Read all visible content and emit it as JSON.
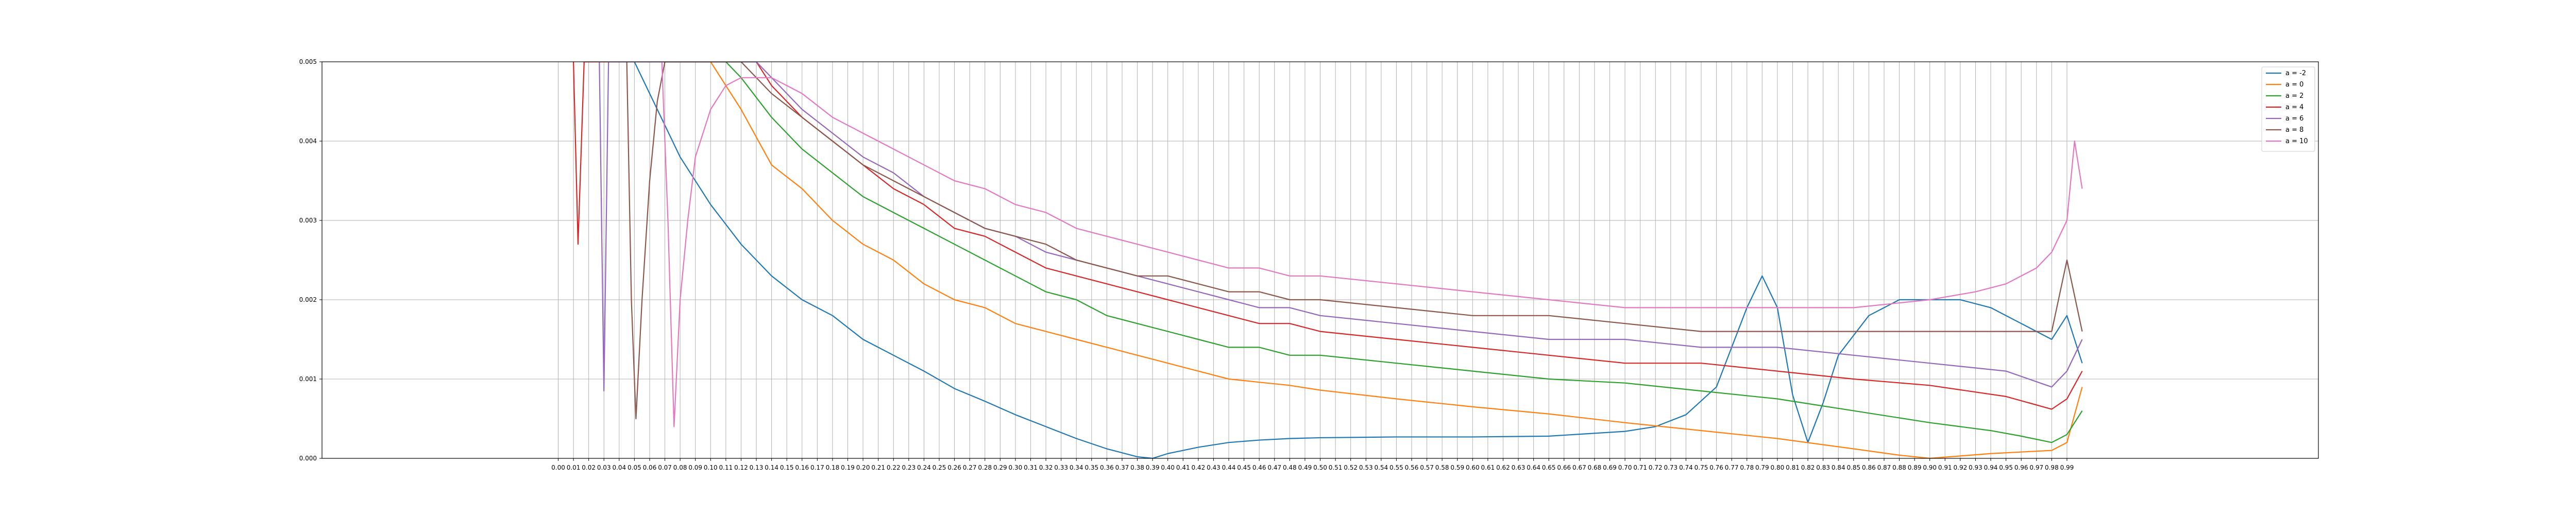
{
  "chart_data": {
    "type": "line",
    "title": "",
    "xlabel": "",
    "ylabel": "",
    "xlim": [
      -0.155,
      1.155
    ],
    "ylim": [
      0,
      0.005
    ],
    "grid": true,
    "legend_position": "top-right",
    "y_ticks": [
      "0.000",
      "0.001",
      "0.002",
      "0.003",
      "0.004",
      "0.005"
    ],
    "x_ticks": [
      "0.00",
      "0.01",
      "0.02",
      "0.03",
      "0.04",
      "0.05",
      "0.06",
      "0.07",
      "0.08",
      "0.09",
      "0.10",
      "0.11",
      "0.12",
      "0.13",
      "0.14",
      "0.15",
      "0.16",
      "0.17",
      "0.18",
      "0.19",
      "0.20",
      "0.21",
      "0.22",
      "0.23",
      "0.24",
      "0.25",
      "0.26",
      "0.27",
      "0.28",
      "0.29",
      "0.30",
      "0.31",
      "0.32",
      "0.33",
      "0.34",
      "0.35",
      "0.36",
      "0.37",
      "0.38",
      "0.39",
      "0.40",
      "0.41",
      "0.42",
      "0.43",
      "0.44",
      "0.45",
      "0.46",
      "0.47",
      "0.48",
      "0.49",
      "0.50",
      "0.51",
      "0.52",
      "0.53",
      "0.54",
      "0.55",
      "0.56",
      "0.57",
      "0.58",
      "0.59",
      "0.60",
      "0.61",
      "0.62",
      "0.63",
      "0.64",
      "0.65",
      "0.66",
      "0.67",
      "0.68",
      "0.69",
      "0.70",
      "0.71",
      "0.72",
      "0.73",
      "0.74",
      "0.75",
      "0.76",
      "0.77",
      "0.78",
      "0.79",
      "0.80",
      "0.81",
      "0.82",
      "0.83",
      "0.84",
      "0.85",
      "0.86",
      "0.87",
      "0.88",
      "0.89",
      "0.90",
      "0.91",
      "0.92",
      "0.93",
      "0.94",
      "0.95",
      "0.96",
      "0.97",
      "0.98",
      "0.99"
    ],
    "series": [
      {
        "name": "a = -2",
        "color": "#1f77b4",
        "x": [
          0.05,
          0.06,
          0.08,
          0.1,
          0.12,
          0.14,
          0.16,
          0.18,
          0.2,
          0.22,
          0.24,
          0.26,
          0.28,
          0.3,
          0.32,
          0.34,
          0.36,
          0.38,
          0.39,
          0.4,
          0.42,
          0.44,
          0.46,
          0.48,
          0.5,
          0.55,
          0.6,
          0.65,
          0.7,
          0.72,
          0.74,
          0.76,
          0.77,
          0.78,
          0.79,
          0.8,
          0.81,
          0.82,
          0.83,
          0.84,
          0.86,
          0.88,
          0.9,
          0.92,
          0.94,
          0.96,
          0.97,
          0.98,
          0.99,
          1.0
        ],
        "y": [
          0.005,
          0.0046,
          0.0038,
          0.0032,
          0.0027,
          0.0023,
          0.002,
          0.0018,
          0.0015,
          0.0013,
          0.0011,
          0.00088,
          0.00072,
          0.00055,
          0.0004,
          0.00025,
          0.00012,
          2e-05,
          0.0,
          6e-05,
          0.00014,
          0.0002,
          0.00023,
          0.00025,
          0.00026,
          0.00027,
          0.00027,
          0.00028,
          0.00034,
          0.0004,
          0.00055,
          0.0009,
          0.0014,
          0.0019,
          0.0023,
          0.0019,
          0.0008,
          0.0002,
          0.0007,
          0.0013,
          0.0018,
          0.002,
          0.002,
          0.002,
          0.0019,
          0.0017,
          0.0016,
          0.0015,
          0.0018,
          0.0012
        ]
      },
      {
        "name": "a = 0",
        "color": "#ff7f0e",
        "x": [
          0.1,
          0.12,
          0.14,
          0.16,
          0.18,
          0.2,
          0.22,
          0.24,
          0.26,
          0.28,
          0.3,
          0.32,
          0.34,
          0.36,
          0.38,
          0.4,
          0.42,
          0.44,
          0.46,
          0.48,
          0.5,
          0.55,
          0.6,
          0.65,
          0.7,
          0.75,
          0.8,
          0.85,
          0.88,
          0.9,
          0.92,
          0.94,
          0.96,
          0.98,
          0.99,
          1.0
        ],
        "y": [
          0.005,
          0.0044,
          0.0037,
          0.0034,
          0.003,
          0.0027,
          0.0025,
          0.0022,
          0.002,
          0.0019,
          0.0017,
          0.0016,
          0.0015,
          0.0014,
          0.0013,
          0.0012,
          0.0011,
          0.001,
          0.00096,
          0.00092,
          0.00086,
          0.00075,
          0.00065,
          0.00056,
          0.00045,
          0.00035,
          0.00025,
          0.00012,
          4e-05,
          0.0,
          3e-05,
          6e-05,
          8e-05,
          0.0001,
          0.0002,
          0.0009
        ]
      },
      {
        "name": "a = 2",
        "color": "#2ca02c",
        "x": [
          0.11,
          0.12,
          0.14,
          0.16,
          0.18,
          0.2,
          0.22,
          0.24,
          0.26,
          0.28,
          0.3,
          0.32,
          0.34,
          0.36,
          0.38,
          0.4,
          0.42,
          0.44,
          0.46,
          0.48,
          0.5,
          0.55,
          0.6,
          0.65,
          0.7,
          0.75,
          0.8,
          0.85,
          0.9,
          0.92,
          0.94,
          0.96,
          0.98,
          0.99,
          1.0
        ],
        "y": [
          0.005,
          0.0048,
          0.0043,
          0.0039,
          0.0036,
          0.0033,
          0.0031,
          0.0029,
          0.0027,
          0.0025,
          0.0023,
          0.0021,
          0.002,
          0.0018,
          0.0017,
          0.0016,
          0.0015,
          0.0014,
          0.0014,
          0.0013,
          0.0013,
          0.0012,
          0.0011,
          0.001,
          0.00095,
          0.00085,
          0.00075,
          0.0006,
          0.00045,
          0.0004,
          0.00035,
          0.00028,
          0.0002,
          0.0003,
          0.0006
        ]
      },
      {
        "name": "a = 4",
        "color": "#d62728",
        "x": [
          0.01,
          0.013,
          0.017,
          0.02,
          0.13,
          0.14,
          0.16,
          0.18,
          0.2,
          0.22,
          0.24,
          0.26,
          0.28,
          0.3,
          0.32,
          0.34,
          0.36,
          0.38,
          0.4,
          0.42,
          0.44,
          0.46,
          0.48,
          0.5,
          0.55,
          0.6,
          0.65,
          0.7,
          0.75,
          0.8,
          0.85,
          0.9,
          0.95,
          0.98,
          0.99,
          1.0
        ],
        "y": [
          0.005,
          0.0027,
          0.005,
          0.005,
          0.005,
          0.0047,
          0.0043,
          0.004,
          0.0037,
          0.0034,
          0.0032,
          0.0029,
          0.0028,
          0.0026,
          0.0024,
          0.0023,
          0.0022,
          0.0021,
          0.002,
          0.0019,
          0.0018,
          0.0017,
          0.0017,
          0.0016,
          0.0015,
          0.0014,
          0.0013,
          0.0012,
          0.0012,
          0.0011,
          0.001,
          0.00092,
          0.00078,
          0.00062,
          0.00075,
          0.0011
        ]
      },
      {
        "name": "a = 6",
        "color": "#9467bd",
        "x": [
          0.027,
          0.03,
          0.033,
          0.13,
          0.14,
          0.16,
          0.18,
          0.2,
          0.22,
          0.24,
          0.26,
          0.28,
          0.3,
          0.32,
          0.34,
          0.36,
          0.38,
          0.4,
          0.42,
          0.44,
          0.46,
          0.48,
          0.5,
          0.55,
          0.6,
          0.65,
          0.7,
          0.75,
          0.8,
          0.85,
          0.9,
          0.95,
          0.98,
          0.99,
          1.0
        ],
        "y": [
          0.005,
          0.00085,
          0.005,
          0.005,
          0.0048,
          0.0044,
          0.0041,
          0.0038,
          0.0036,
          0.0033,
          0.0031,
          0.0029,
          0.0028,
          0.0026,
          0.0025,
          0.0024,
          0.0023,
          0.0022,
          0.0021,
          0.002,
          0.0019,
          0.0019,
          0.0018,
          0.0017,
          0.0016,
          0.0015,
          0.0015,
          0.0014,
          0.0014,
          0.0013,
          0.0012,
          0.0011,
          0.0009,
          0.0011,
          0.0015
        ]
      },
      {
        "name": "a = 8",
        "color": "#8c564b",
        "x": [
          0.045,
          0.048,
          0.051,
          0.055,
          0.06,
          0.065,
          0.07,
          0.12,
          0.14,
          0.16,
          0.18,
          0.2,
          0.22,
          0.24,
          0.26,
          0.28,
          0.3,
          0.32,
          0.34,
          0.36,
          0.38,
          0.4,
          0.42,
          0.44,
          0.46,
          0.48,
          0.5,
          0.55,
          0.6,
          0.65,
          0.7,
          0.75,
          0.8,
          0.85,
          0.9,
          0.95,
          0.98,
          0.99,
          1.0
        ],
        "y": [
          0.005,
          0.002,
          0.0005,
          0.002,
          0.0035,
          0.0045,
          0.005,
          0.005,
          0.0046,
          0.0043,
          0.004,
          0.0037,
          0.0035,
          0.0033,
          0.0031,
          0.0029,
          0.0028,
          0.0027,
          0.0025,
          0.0024,
          0.0023,
          0.0023,
          0.0022,
          0.0021,
          0.0021,
          0.002,
          0.002,
          0.0019,
          0.0018,
          0.0018,
          0.0017,
          0.0016,
          0.0016,
          0.0016,
          0.0016,
          0.0016,
          0.0016,
          0.0025,
          0.0016
        ]
      },
      {
        "name": "a = 10",
        "color": "#e377c2",
        "x": [
          0.068,
          0.072,
          0.076,
          0.08,
          0.085,
          0.09,
          0.1,
          0.11,
          0.12,
          0.13,
          0.14,
          0.16,
          0.18,
          0.2,
          0.22,
          0.24,
          0.26,
          0.28,
          0.3,
          0.32,
          0.34,
          0.36,
          0.38,
          0.4,
          0.42,
          0.44,
          0.46,
          0.48,
          0.5,
          0.55,
          0.6,
          0.65,
          0.7,
          0.75,
          0.8,
          0.85,
          0.9,
          0.93,
          0.95,
          0.97,
          0.98,
          0.99,
          0.995,
          1.0
        ],
        "y": [
          0.005,
          0.003,
          0.0004,
          0.002,
          0.003,
          0.0038,
          0.0044,
          0.0047,
          0.0048,
          0.0048,
          0.0048,
          0.0046,
          0.0043,
          0.0041,
          0.0039,
          0.0037,
          0.0035,
          0.0034,
          0.0032,
          0.0031,
          0.0029,
          0.0028,
          0.0027,
          0.0026,
          0.0025,
          0.0024,
          0.0024,
          0.0023,
          0.0023,
          0.0022,
          0.0021,
          0.002,
          0.0019,
          0.0019,
          0.0019,
          0.0019,
          0.002,
          0.0021,
          0.0022,
          0.0024,
          0.0026,
          0.003,
          0.004,
          0.0034
        ]
      }
    ]
  }
}
